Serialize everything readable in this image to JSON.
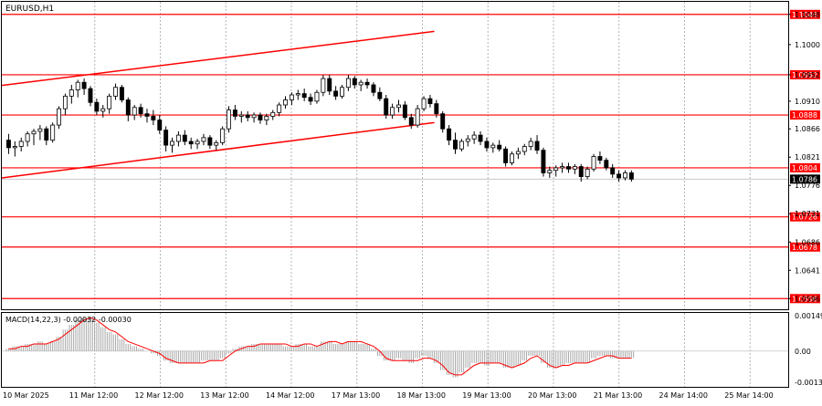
{
  "chart_data": {
    "type": "candlestick",
    "symbol_label": "EURUSD,H1",
    "ylim": [
      1.0579,
      1.1068
    ],
    "price_ticks": [
      "1.1048",
      "1.1000",
      "1.0952",
      "1.0910",
      "1.0866",
      "1.0821",
      "1.0776",
      "1.0731",
      "1.0686",
      "1.0641",
      "1.0596"
    ],
    "x_ticks": [
      "10 Mar 2025",
      "11 Mar 12:00",
      "12 Mar 12:00",
      "13 Mar 12:00",
      "14 Mar 12:00",
      "17 Mar 13:00",
      "18 Mar 13:00",
      "19 Mar 13:00",
      "20 Mar 13:00",
      "21 Mar 13:00",
      "24 Mar 14:00",
      "25 Mar 14:00"
    ],
    "levels": [
      {
        "value": 1.1048,
        "label": "1.1048"
      },
      {
        "value": 1.0952,
        "label": "1.0952"
      },
      {
        "value": 1.0888,
        "label": "1.0888"
      },
      {
        "value": 1.0804,
        "label": "1.0804"
      },
      {
        "value": 1.0726,
        "label": "1.0726"
      },
      {
        "value": 1.0678,
        "label": "1.0678"
      },
      {
        "value": 1.0596,
        "label": "1.0596"
      }
    ],
    "current_price": {
      "value": 1.0786,
      "label": "1.0786"
    },
    "channel": {
      "upper": {
        "start": [
          0,
          1.0935
        ],
        "end": [
          100,
          1.1021
        ]
      },
      "lower": {
        "start": [
          0,
          1.0788
        ],
        "end": [
          100,
          1.0876
        ]
      }
    },
    "candles": [
      [
        1.0848,
        1.0858,
        1.0826,
        1.0836
      ],
      [
        1.0836,
        1.0846,
        1.0822,
        1.0838
      ],
      [
        1.0838,
        1.0852,
        1.083,
        1.0846
      ],
      [
        1.0846,
        1.0862,
        1.0838,
        1.0858
      ],
      [
        1.0858,
        1.0866,
        1.084,
        1.0862
      ],
      [
        1.0862,
        1.0872,
        1.0848,
        1.0866
      ],
      [
        1.0866,
        1.087,
        1.084,
        1.0848
      ],
      [
        1.0848,
        1.0876,
        1.0844,
        1.0872
      ],
      [
        1.0872,
        1.0902,
        1.0866,
        1.0898
      ],
      [
        1.0898,
        1.0922,
        1.0888,
        1.0918
      ],
      [
        1.0918,
        1.0936,
        1.0906,
        1.0928
      ],
      [
        1.0928,
        1.0944,
        1.0916,
        1.094
      ],
      [
        1.094,
        1.0946,
        1.092,
        1.093
      ],
      [
        1.093,
        1.0934,
        1.0902,
        1.0908
      ],
      [
        1.0908,
        1.0914,
        1.0888,
        1.0894
      ],
      [
        1.0894,
        1.0904,
        1.0884,
        1.0898
      ],
      [
        1.0898,
        1.0922,
        1.089,
        1.0918
      ],
      [
        1.0918,
        1.0938,
        1.0912,
        1.0932
      ],
      [
        1.0932,
        1.0936,
        1.0908,
        1.0912
      ],
      [
        1.0912,
        1.0916,
        1.0878,
        1.0888
      ],
      [
        1.0888,
        1.0904,
        1.088,
        1.09
      ],
      [
        1.09,
        1.0906,
        1.0884,
        1.089
      ],
      [
        1.089,
        1.0898,
        1.0876,
        1.0886
      ],
      [
        1.0886,
        1.0896,
        1.0872,
        1.088
      ],
      [
        1.088,
        1.0888,
        1.0858,
        1.0864
      ],
      [
        1.0864,
        1.087,
        1.083,
        1.084
      ],
      [
        1.084,
        1.0852,
        1.0828,
        1.0846
      ],
      [
        1.0846,
        1.0862,
        1.0838,
        1.0856
      ],
      [
        1.0856,
        1.0864,
        1.084,
        1.0846
      ],
      [
        1.0846,
        1.0852,
        1.0834,
        1.0842
      ],
      [
        1.0842,
        1.085,
        1.0834,
        1.0846
      ],
      [
        1.0846,
        1.0858,
        1.084,
        1.0852
      ],
      [
        1.0852,
        1.0856,
        1.0834,
        1.084
      ],
      [
        1.084,
        1.0848,
        1.0832,
        1.0844
      ],
      [
        1.0844,
        1.087,
        1.084,
        1.0866
      ],
      [
        1.0866,
        1.0902,
        1.086,
        1.0896
      ],
      [
        1.0896,
        1.0904,
        1.088,
        1.0886
      ],
      [
        1.0886,
        1.0894,
        1.0876,
        1.0888
      ],
      [
        1.0888,
        1.0894,
        1.0878,
        1.0884
      ],
      [
        1.0884,
        1.0892,
        1.0876,
        1.0888
      ],
      [
        1.0888,
        1.0892,
        1.0874,
        1.088
      ],
      [
        1.088,
        1.089,
        1.0872,
        1.0886
      ],
      [
        1.0886,
        1.0896,
        1.088,
        1.0892
      ],
      [
        1.0892,
        1.0908,
        1.0886,
        1.0904
      ],
      [
        1.0904,
        1.0918,
        1.0898,
        1.0912
      ],
      [
        1.0912,
        1.0924,
        1.0904,
        1.092
      ],
      [
        1.092,
        1.0928,
        1.0912,
        1.0922
      ],
      [
        1.0922,
        1.093,
        1.091,
        1.0916
      ],
      [
        1.0916,
        1.0922,
        1.0904,
        1.091
      ],
      [
        1.091,
        1.0928,
        1.0906,
        1.0924
      ],
      [
        1.0924,
        1.0952,
        1.0918,
        1.0946
      ],
      [
        1.0946,
        1.0952,
        1.092,
        1.0926
      ],
      [
        1.0926,
        1.0934,
        1.0912,
        1.0918
      ],
      [
        1.0918,
        1.0936,
        1.0914,
        1.0932
      ],
      [
        1.0932,
        1.0952,
        1.0926,
        1.0946
      ],
      [
        1.0946,
        1.095,
        1.093,
        1.0936
      ],
      [
        1.0936,
        1.0944,
        1.0926,
        1.094
      ],
      [
        1.094,
        1.0946,
        1.093,
        1.0936
      ],
      [
        1.0936,
        1.094,
        1.0918,
        1.0924
      ],
      [
        1.0924,
        1.0932,
        1.091,
        1.0914
      ],
      [
        1.0914,
        1.092,
        1.0882,
        1.0888
      ],
      [
        1.0888,
        1.0906,
        1.0882,
        1.09
      ],
      [
        1.09,
        1.0912,
        1.0892,
        1.0904
      ],
      [
        1.0904,
        1.091,
        1.088,
        1.0884
      ],
      [
        1.0884,
        1.089,
        1.0866,
        1.0872
      ],
      [
        1.0872,
        1.0904,
        1.0868,
        1.0898
      ],
      [
        1.0898,
        1.0918,
        1.0894,
        1.0914
      ],
      [
        1.0914,
        1.092,
        1.09,
        1.0906
      ],
      [
        1.0906,
        1.0912,
        1.0884,
        1.089
      ],
      [
        1.089,
        1.0894,
        1.086,
        1.0866
      ],
      [
        1.0866,
        1.0872,
        1.084,
        1.0848
      ],
      [
        1.0848,
        1.086,
        1.0826,
        1.0834
      ],
      [
        1.0834,
        1.085,
        1.083,
        1.0846
      ],
      [
        1.0846,
        1.0856,
        1.0838,
        1.085
      ],
      [
        1.085,
        1.0862,
        1.0842,
        1.0856
      ],
      [
        1.0856,
        1.0862,
        1.084,
        1.0846
      ],
      [
        1.0846,
        1.0852,
        1.083,
        1.0836
      ],
      [
        1.0836,
        1.0844,
        1.0828,
        1.084
      ],
      [
        1.084,
        1.0848,
        1.083,
        1.0834
      ],
      [
        1.0834,
        1.0838,
        1.0806,
        1.0812
      ],
      [
        1.0812,
        1.083,
        1.0808,
        1.0826
      ],
      [
        1.0826,
        1.0836,
        1.0818,
        1.083
      ],
      [
        1.083,
        1.0842,
        1.0824,
        1.0838
      ],
      [
        1.0838,
        1.0852,
        1.0832,
        1.0846
      ],
      [
        1.0846,
        1.0856,
        1.0826,
        1.0832
      ],
      [
        1.0832,
        1.0836,
        1.079,
        1.0796
      ],
      [
        1.0796,
        1.0806,
        1.0788,
        1.08
      ],
      [
        1.08,
        1.0808,
        1.079,
        1.0804
      ],
      [
        1.0804,
        1.0812,
        1.0796,
        1.0806
      ],
      [
        1.0806,
        1.0812,
        1.0796,
        1.0802
      ],
      [
        1.0802,
        1.081,
        1.0794,
        1.0806
      ],
      [
        1.0806,
        1.081,
        1.0782,
        1.079
      ],
      [
        1.079,
        1.0806,
        1.0786,
        1.0802
      ],
      [
        1.0802,
        1.0826,
        1.0798,
        1.0822
      ],
      [
        1.0822,
        1.083,
        1.081,
        1.0816
      ],
      [
        1.0816,
        1.082,
        1.08,
        1.0804
      ],
      [
        1.0804,
        1.081,
        1.0788,
        1.0794
      ],
      [
        1.0794,
        1.08,
        1.0782,
        1.0788
      ],
      [
        1.0788,
        1.08,
        1.0784,
        1.0796
      ],
      [
        1.0796,
        1.08,
        1.0782,
        1.0786
      ]
    ],
    "macd": {
      "label": "MACD(14,22,3) -0.00032 -0.00030",
      "ylim": [
        -0.0015,
        0.0016
      ],
      "y_ticks": [
        "0.00149",
        "0.00",
        "-0.0013"
      ],
      "values": [
        0.0001,
        0.0002,
        0.0002,
        0.0003,
        0.0003,
        0.0004,
        0.0003,
        0.0004,
        0.0006,
        0.0009,
        0.0011,
        0.0013,
        0.0014,
        0.0014,
        0.0012,
        0.001,
        0.0008,
        0.0007,
        0.0005,
        0.0003,
        0.0002,
        0.0001,
        0.0,
        -0.0001,
        -0.0002,
        -0.0004,
        -0.0005,
        -0.0005,
        -0.0005,
        -0.0005,
        -0.0005,
        -0.0004,
        -0.0004,
        -0.0004,
        -0.0003,
        -0.0001,
        0.0001,
        0.0002,
        0.0002,
        0.0003,
        0.0003,
        0.0003,
        0.0003,
        0.0003,
        0.0002,
        0.0002,
        0.0003,
        0.0003,
        0.0002,
        0.0002,
        0.0004,
        0.0004,
        0.0003,
        0.0003,
        0.0004,
        0.0004,
        0.0003,
        0.0003,
        0.0001,
        -0.0002,
        -0.0004,
        -0.0004,
        -0.0003,
        -0.0004,
        -0.0005,
        -0.0003,
        -0.0002,
        -0.0003,
        -0.0005,
        -0.0008,
        -0.001,
        -0.0011,
        -0.0009,
        -0.0007,
        -0.0005,
        -0.0005,
        -0.0006,
        -0.0005,
        -0.0005,
        -0.0007,
        -0.0007,
        -0.0006,
        -0.0004,
        -0.0002,
        -0.0002,
        -0.0005,
        -0.0007,
        -0.0007,
        -0.0006,
        -0.0005,
        -0.0005,
        -0.0005,
        -0.0005,
        -0.0003,
        -0.0002,
        -0.0002,
        -0.0003,
        -0.0003,
        -0.0003,
        -0.0003
      ],
      "signal": [
        0.0001,
        0.0001,
        0.0002,
        0.0002,
        0.0003,
        0.0003,
        0.0003,
        0.0004,
        0.0005,
        0.0007,
        0.0009,
        0.0011,
        0.0013,
        0.0014,
        0.0013,
        0.0011,
        0.0009,
        0.0008,
        0.0006,
        0.0004,
        0.0003,
        0.0002,
        0.0001,
        0.0,
        -0.0001,
        -0.0003,
        -0.0004,
        -0.0005,
        -0.0005,
        -0.0005,
        -0.0005,
        -0.0005,
        -0.0004,
        -0.0004,
        -0.0004,
        -0.0002,
        0.0,
        0.0001,
        0.0002,
        0.0002,
        0.0003,
        0.0003,
        0.0003,
        0.0003,
        0.0003,
        0.0002,
        0.0002,
        0.0003,
        0.0003,
        0.0002,
        0.0003,
        0.0004,
        0.0004,
        0.0003,
        0.0004,
        0.0004,
        0.0004,
        0.0003,
        0.0002,
        0.0,
        -0.0003,
        -0.0004,
        -0.0004,
        -0.0004,
        -0.0004,
        -0.0004,
        -0.0003,
        -0.0003,
        -0.0004,
        -0.0006,
        -0.0009,
        -0.001,
        -0.001,
        -0.0008,
        -0.0006,
        -0.0005,
        -0.0005,
        -0.0005,
        -0.0005,
        -0.0006,
        -0.0007,
        -0.0006,
        -0.0005,
        -0.0003,
        -0.0002,
        -0.0004,
        -0.0006,
        -0.0007,
        -0.0006,
        -0.0006,
        -0.0005,
        -0.0005,
        -0.0005,
        -0.0004,
        -0.0003,
        -0.0002,
        -0.0002,
        -0.0003,
        -0.0003,
        -0.0003
      ]
    },
    "colors": {
      "level_line": "#ff0000",
      "level_label_bg": "#ff0000",
      "level_label_text": "#ffffff",
      "current_label_bg": "#000000",
      "current_label_text": "#ffffff",
      "candle": "#000000",
      "bull_body": "#ffffff",
      "grid": "#b4b4b4",
      "macd_hist": "#a8a8a8",
      "macd_signal": "#ff0000"
    }
  }
}
